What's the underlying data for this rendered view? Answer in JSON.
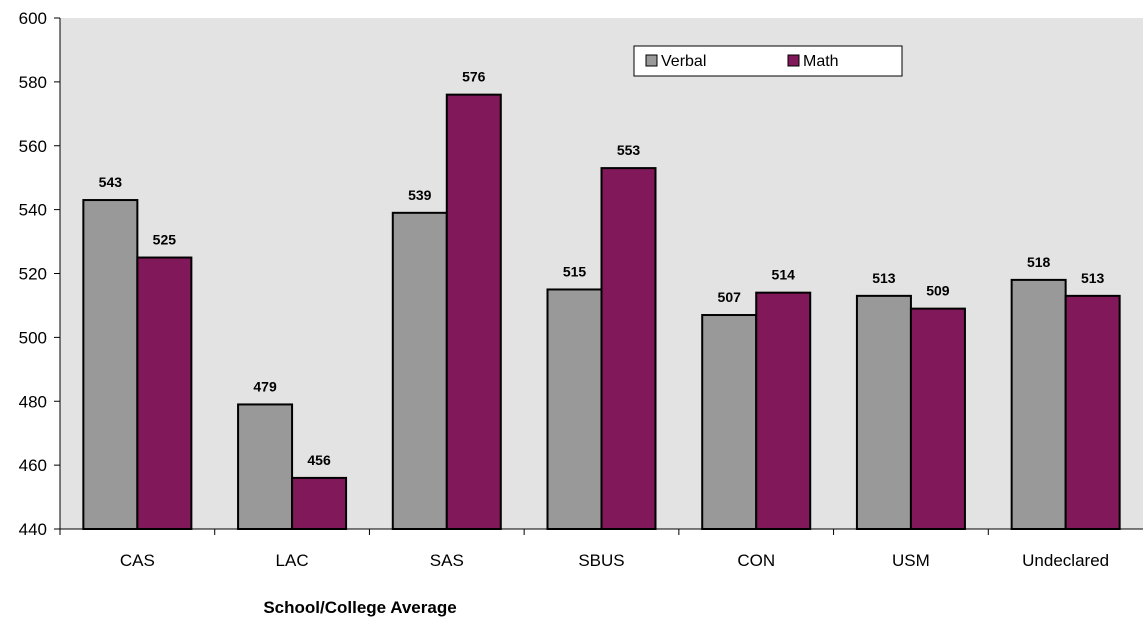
{
  "chart_data": {
    "type": "bar",
    "title": "",
    "xlabel": "School/College Average",
    "ylabel": "",
    "ylim": [
      440,
      600
    ],
    "yticks": [
      440,
      460,
      480,
      500,
      520,
      540,
      560,
      580,
      600
    ],
    "grid": false,
    "legend_position": "top-right",
    "categories": [
      "CAS",
      "LAC",
      "SAS",
      "SBUS",
      "CON",
      "USM",
      "Undeclared"
    ],
    "series": [
      {
        "name": "Verbal",
        "color": "#999999",
        "values": [
          543,
          479,
          539,
          515,
          507,
          513,
          518
        ]
      },
      {
        "name": "Math",
        "color": "#80185a",
        "values": [
          525,
          456,
          576,
          553,
          514,
          509,
          513
        ]
      }
    ],
    "plot_background": "#e3e3e3"
  }
}
